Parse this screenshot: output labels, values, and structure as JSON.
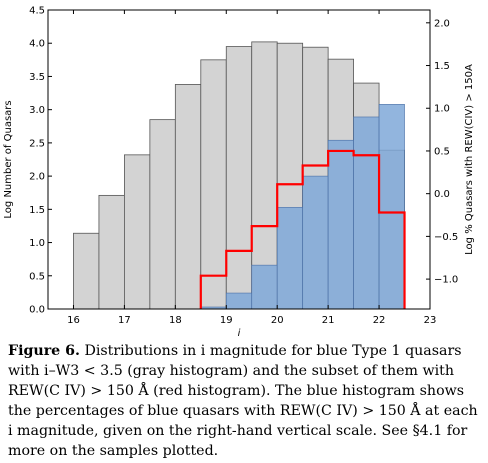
{
  "chart_data": {
    "type": "bar",
    "xlabel": "i",
    "ylabel": "Log Number of Quasars",
    "y2label": "Log % Quasars with REW(CIV) > 150A",
    "xlim": [
      15.5,
      23
    ],
    "ylim": [
      0,
      4.5
    ],
    "y2lim": [
      -1.35,
      2.15
    ],
    "x_ticks": [
      "16",
      "17",
      "18",
      "19",
      "20",
      "21",
      "22",
      "23"
    ],
    "y_ticks": [
      "0.0",
      "0.5",
      "1.0",
      "1.5",
      "2.0",
      "2.5",
      "3.0",
      "3.5",
      "4.0",
      "4.5"
    ],
    "y2_ticks": [
      "−1.0",
      "−0.5",
      "0.0",
      "0.5",
      "1.0",
      "1.5",
      "2.0"
    ],
    "bin_edges": [
      16.0,
      16.5,
      17.0,
      17.5,
      18.0,
      18.5,
      19.0,
      19.5,
      20.0,
      20.5,
      21.0,
      21.5,
      22.0,
      22.5
    ],
    "series": [
      {
        "values": [
          1.14,
          1.71,
          2.32,
          2.85,
          3.38,
          3.75,
          3.95,
          4.02,
          4.0,
          3.94,
          3.76,
          3.4,
          2.39
        ],
        "color": "#d3d3d3",
        "edge": "#555555"
      },
      {
        "values": [
          0,
          0,
          0,
          0,
          0,
          0.03,
          0.24,
          0.66,
          1.53,
          2.0,
          2.54,
          2.89,
          3.08
        ],
        "color": "#7fa8d8",
        "edge": "#4a6fa5"
      },
      {
        "values": [
          null,
          null,
          null,
          null,
          null,
          -0.96,
          -0.67,
          -0.38,
          0.11,
          0.33,
          0.5,
          0.45,
          -0.22
        ],
        "axis": "right",
        "color": "#ff0000"
      }
    ]
  },
  "caption": {
    "lead": "Figure 6.",
    "text": "Distributions in i magnitude for blue Type 1 quasars with i–W3 < 3.5 (gray histogram) and the subset of them with REW(C IV) > 150 Å (red histogram). The blue histogram shows the percentages of blue quasars with REW(C IV) > 150 Å at each i magnitude, given on the right-hand vertical scale. See §4.1 for more on the samples plotted."
  }
}
